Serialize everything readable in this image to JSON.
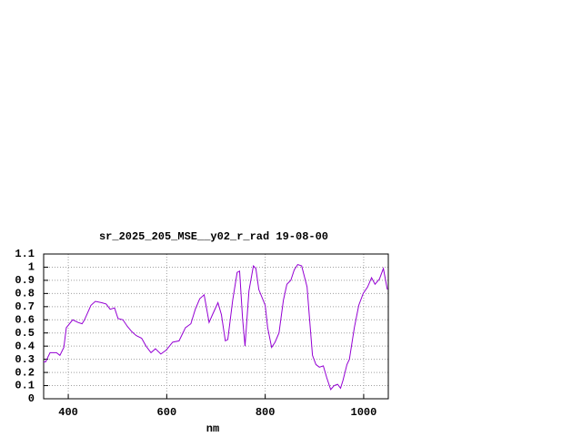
{
  "chart_data": {
    "type": "line",
    "title": "sr_2025_205_MSE__y02_r_rad 19-08-00",
    "x_label": "nm",
    "xlim": [
      350,
      1050
    ],
    "xticks": [
      400,
      600,
      800,
      1000
    ],
    "ylim": [
      0,
      1.1
    ],
    "yticks": [
      0,
      0.1,
      0.2,
      0.3,
      0.4,
      0.5,
      0.6,
      0.7,
      0.8,
      0.9,
      1,
      1.1
    ],
    "grid": true,
    "x": [
      350,
      354,
      363,
      376,
      383,
      391,
      396,
      409,
      420,
      428,
      433,
      446,
      455,
      468,
      477,
      485,
      494,
      501,
      511,
      520,
      529,
      538,
      549,
      558,
      568,
      577,
      588,
      599,
      612,
      625,
      638,
      649,
      658,
      667,
      676,
      686,
      693,
      704,
      711,
      719,
      724,
      734,
      743,
      748,
      754,
      759,
      767,
      776,
      781,
      787,
      800,
      805,
      813,
      820,
      828,
      837,
      844,
      852,
      859,
      866,
      874,
      885,
      890,
      896,
      903,
      910,
      918,
      925,
      933,
      940,
      947,
      953,
      958,
      966,
      971,
      981,
      990,
      999,
      1008,
      1016,
      1023,
      1032,
      1040,
      1048
    ],
    "series": [
      {
        "color": "#9400d3",
        "values": [
          0.28,
          0.28,
          0.35,
          0.35,
          0.33,
          0.39,
          0.54,
          0.6,
          0.58,
          0.57,
          0.6,
          0.71,
          0.74,
          0.73,
          0.72,
          0.68,
          0.69,
          0.61,
          0.6,
          0.55,
          0.51,
          0.48,
          0.46,
          0.4,
          0.35,
          0.38,
          0.34,
          0.37,
          0.43,
          0.44,
          0.54,
          0.57,
          0.68,
          0.76,
          0.79,
          0.58,
          0.64,
          0.73,
          0.64,
          0.44,
          0.45,
          0.75,
          0.96,
          0.97,
          0.61,
          0.4,
          0.82,
          1.01,
          0.99,
          0.83,
          0.71,
          0.54,
          0.39,
          0.43,
          0.5,
          0.75,
          0.87,
          0.9,
          0.98,
          1.02,
          1.01,
          0.85,
          0.61,
          0.33,
          0.26,
          0.24,
          0.25,
          0.16,
          0.07,
          0.1,
          0.11,
          0.08,
          0.14,
          0.26,
          0.3,
          0.54,
          0.71,
          0.8,
          0.85,
          0.92,
          0.87,
          0.91,
          0.99,
          0.83
        ]
      }
    ]
  }
}
